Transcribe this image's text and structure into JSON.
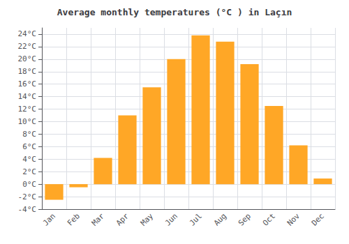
{
  "chart_data": {
    "type": "bar",
    "title": "Average monthly temperatures (°C ) in Laçın",
    "categories": [
      "Jan",
      "Feb",
      "Mar",
      "Apr",
      "May",
      "Jun",
      "Jul",
      "Aug",
      "Sep",
      "Oct",
      "Nov",
      "Dec"
    ],
    "values": [
      -2.5,
      -0.5,
      4.2,
      11.0,
      15.5,
      20.0,
      23.8,
      22.8,
      19.2,
      12.5,
      6.2,
      0.9
    ],
    "color": "#FFA726",
    "ylim": [
      -4,
      25
    ],
    "yticks": [
      {
        "value": -4,
        "label": "-4°C"
      },
      {
        "value": -2,
        "label": "-2°C"
      },
      {
        "value": 0,
        "label": "0°C"
      },
      {
        "value": 2,
        "label": "2°C"
      },
      {
        "value": 4,
        "label": "4°C"
      },
      {
        "value": 6,
        "label": "6°C"
      },
      {
        "value": 8,
        "label": "8°C"
      },
      {
        "value": 10,
        "label": "10°C"
      },
      {
        "value": 12,
        "label": "12°C"
      },
      {
        "value": 14,
        "label": "14°C"
      },
      {
        "value": 16,
        "label": "16°C"
      },
      {
        "value": 18,
        "label": "18°C"
      },
      {
        "value": 20,
        "label": "20°C"
      },
      {
        "value": 22,
        "label": "22°C"
      },
      {
        "value": 24,
        "label": "24°C"
      }
    ],
    "grid": true
  }
}
